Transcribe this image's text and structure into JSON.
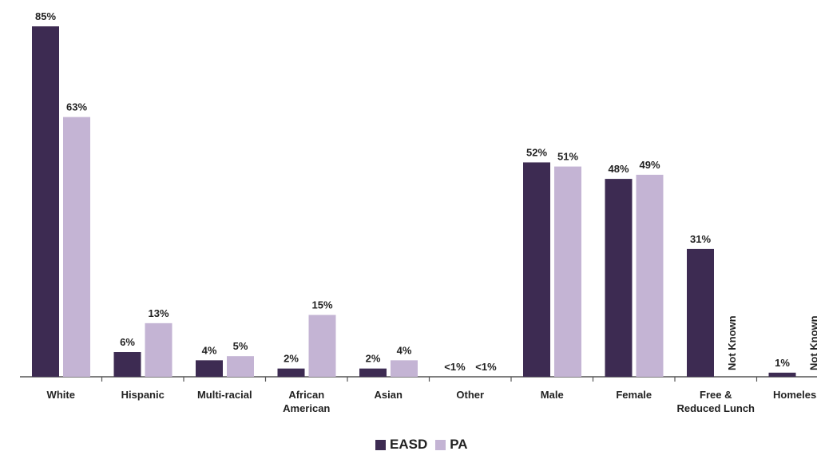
{
  "chart_data": {
    "type": "bar",
    "categories": [
      [
        "White"
      ],
      [
        "Hispanic"
      ],
      [
        "Multi-racial"
      ],
      [
        "African",
        "American"
      ],
      [
        "Asian"
      ],
      [
        "Other"
      ],
      [
        "Male"
      ],
      [
        "Female"
      ],
      [
        "Free &",
        "Reduced Lunch"
      ],
      [
        "Homeless"
      ]
    ],
    "series": [
      {
        "name": "EASD",
        "color": "#3d2b52",
        "values": [
          85,
          6,
          4,
          2,
          2,
          0,
          52,
          48,
          31,
          1
        ],
        "labels": [
          "85%",
          "6%",
          "4%",
          "2%",
          "2%",
          "<1%",
          "52%",
          "48%",
          "31%",
          "1%"
        ]
      },
      {
        "name": "PA",
        "color": "#c4b4d4",
        "values": [
          63,
          13,
          5,
          15,
          4,
          0,
          51,
          49,
          null,
          null
        ],
        "labels": [
          "63%",
          "13%",
          "5%",
          "15%",
          "4%",
          "<1%",
          "51%",
          "49%",
          "Not Known",
          "Not Known"
        ]
      }
    ],
    "ylim": [
      0,
      85
    ],
    "grid": false,
    "legend_position": "bottom-center",
    "title": "",
    "xlabel": "",
    "ylabel": ""
  }
}
